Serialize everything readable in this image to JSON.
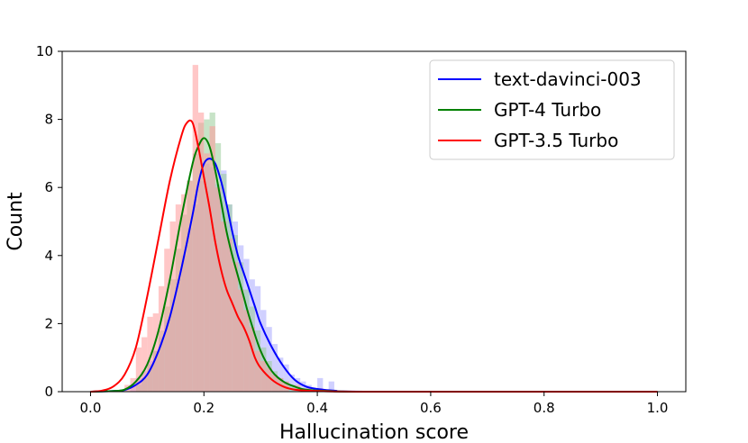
{
  "chart_data": {
    "type": "histogram",
    "title": "",
    "xlabel": "Hallucination score",
    "ylabel": "Count",
    "xlim": [
      -0.05,
      1.05
    ],
    "ylim": [
      0,
      10
    ],
    "xticks": [
      "0.0",
      "0.2",
      "0.4",
      "0.6",
      "0.8",
      "1.0"
    ],
    "yticks": [
      "0",
      "2",
      "4",
      "6",
      "8",
      "10"
    ],
    "grid": false,
    "legend_position": "top-right",
    "bin_width": 0.01,
    "series": [
      {
        "name": "text-davinci-003",
        "color": "#0000ff",
        "hist_color": "#aaaaff",
        "hist": [
          [
            0.07,
            0.2
          ],
          [
            0.08,
            0.4
          ],
          [
            0.09,
            0.6
          ],
          [
            0.1,
            0.9
          ],
          [
            0.11,
            1.2
          ],
          [
            0.12,
            1.6
          ],
          [
            0.13,
            2.1
          ],
          [
            0.14,
            2.7
          ],
          [
            0.15,
            3.3
          ],
          [
            0.16,
            4.0
          ],
          [
            0.17,
            4.8
          ],
          [
            0.18,
            5.5
          ],
          [
            0.19,
            6.2
          ],
          [
            0.2,
            6.7
          ],
          [
            0.21,
            6.6
          ],
          [
            0.22,
            6.1
          ],
          [
            0.23,
            6.5
          ],
          [
            0.24,
            5.5
          ],
          [
            0.25,
            5.0
          ],
          [
            0.26,
            4.3
          ],
          [
            0.27,
            3.9
          ],
          [
            0.28,
            3.3
          ],
          [
            0.29,
            3.1
          ],
          [
            0.3,
            2.4
          ],
          [
            0.31,
            1.9
          ],
          [
            0.32,
            1.4
          ],
          [
            0.33,
            1.0
          ],
          [
            0.34,
            0.8
          ],
          [
            0.35,
            0.5
          ],
          [
            0.36,
            0.4
          ],
          [
            0.37,
            0.3
          ],
          [
            0.38,
            0.2
          ],
          [
            0.4,
            0.4
          ],
          [
            0.42,
            0.3
          ]
        ],
        "kde": [
          [
            0.0,
            0.0
          ],
          [
            0.04,
            0.02
          ],
          [
            0.06,
            0.05
          ],
          [
            0.08,
            0.2
          ],
          [
            0.1,
            0.5
          ],
          [
            0.12,
            1.2
          ],
          [
            0.14,
            2.2
          ],
          [
            0.16,
            3.6
          ],
          [
            0.18,
            5.2
          ],
          [
            0.19,
            6.1
          ],
          [
            0.2,
            6.7
          ],
          [
            0.21,
            6.85
          ],
          [
            0.22,
            6.7
          ],
          [
            0.23,
            6.2
          ],
          [
            0.24,
            5.5
          ],
          [
            0.25,
            4.7
          ],
          [
            0.26,
            4.0
          ],
          [
            0.27,
            3.5
          ],
          [
            0.28,
            3.0
          ],
          [
            0.29,
            2.5
          ],
          [
            0.3,
            2.0
          ],
          [
            0.32,
            1.3
          ],
          [
            0.34,
            0.75
          ],
          [
            0.36,
            0.35
          ],
          [
            0.38,
            0.15
          ],
          [
            0.4,
            0.08
          ],
          [
            0.43,
            0.03
          ],
          [
            0.5,
            0.0
          ],
          [
            1.0,
            0.0
          ]
        ]
      },
      {
        "name": "GPT-4 Turbo",
        "color": "#008000",
        "hist_color": "#99cc99",
        "hist": [
          [
            0.08,
            0.2
          ],
          [
            0.09,
            0.4
          ],
          [
            0.1,
            0.8
          ],
          [
            0.11,
            1.2
          ],
          [
            0.12,
            1.8
          ],
          [
            0.13,
            2.5
          ],
          [
            0.14,
            3.3
          ],
          [
            0.15,
            4.2
          ],
          [
            0.16,
            5.2
          ],
          [
            0.17,
            6.2
          ],
          [
            0.18,
            7.0
          ],
          [
            0.19,
            7.9
          ],
          [
            0.2,
            8.0
          ],
          [
            0.21,
            8.2
          ],
          [
            0.22,
            7.3
          ],
          [
            0.23,
            6.4
          ],
          [
            0.24,
            5.5
          ],
          [
            0.25,
            4.6
          ],
          [
            0.26,
            3.8
          ],
          [
            0.27,
            3.0
          ],
          [
            0.28,
            2.5
          ],
          [
            0.29,
            1.8
          ],
          [
            0.3,
            1.3
          ],
          [
            0.31,
            0.9
          ],
          [
            0.32,
            0.6
          ],
          [
            0.33,
            0.4
          ],
          [
            0.34,
            0.3
          ],
          [
            0.35,
            0.2
          ],
          [
            0.36,
            0.1
          ]
        ],
        "kde": [
          [
            0.0,
            0.0
          ],
          [
            0.04,
            0.02
          ],
          [
            0.06,
            0.06
          ],
          [
            0.08,
            0.3
          ],
          [
            0.1,
            0.8
          ],
          [
            0.12,
            1.8
          ],
          [
            0.14,
            3.3
          ],
          [
            0.16,
            5.1
          ],
          [
            0.18,
            6.7
          ],
          [
            0.19,
            7.2
          ],
          [
            0.2,
            7.45
          ],
          [
            0.21,
            7.2
          ],
          [
            0.22,
            6.5
          ],
          [
            0.23,
            5.6
          ],
          [
            0.24,
            4.7
          ],
          [
            0.25,
            4.0
          ],
          [
            0.26,
            3.4
          ],
          [
            0.27,
            2.8
          ],
          [
            0.28,
            2.2
          ],
          [
            0.3,
            1.2
          ],
          [
            0.32,
            0.6
          ],
          [
            0.34,
            0.3
          ],
          [
            0.36,
            0.15
          ],
          [
            0.38,
            0.06
          ],
          [
            0.42,
            0.02
          ],
          [
            0.5,
            0.0
          ],
          [
            1.0,
            0.0
          ]
        ]
      },
      {
        "name": "GPT-3.5 Turbo",
        "color": "#ff0000",
        "hist_color": "#ff9999",
        "hist": [
          [
            0.06,
            0.2
          ],
          [
            0.07,
            0.4
          ],
          [
            0.08,
            1.3
          ],
          [
            0.09,
            1.6
          ],
          [
            0.1,
            2.2
          ],
          [
            0.11,
            2.3
          ],
          [
            0.12,
            3.1
          ],
          [
            0.13,
            4.2
          ],
          [
            0.14,
            5.0
          ],
          [
            0.15,
            5.5
          ],
          [
            0.16,
            5.8
          ],
          [
            0.17,
            6.2
          ],
          [
            0.18,
            9.6
          ],
          [
            0.19,
            8.2
          ],
          [
            0.2,
            7.0
          ],
          [
            0.21,
            7.8
          ],
          [
            0.22,
            6.0
          ],
          [
            0.23,
            5.0
          ],
          [
            0.24,
            4.5
          ],
          [
            0.25,
            3.8
          ],
          [
            0.26,
            3.0
          ],
          [
            0.27,
            2.4
          ],
          [
            0.28,
            1.9
          ],
          [
            0.29,
            1.2
          ],
          [
            0.3,
            0.9
          ],
          [
            0.31,
            0.7
          ],
          [
            0.32,
            0.5
          ],
          [
            0.33,
            0.4
          ],
          [
            0.34,
            0.3
          ],
          [
            0.36,
            0.2
          ],
          [
            0.38,
            0.1
          ],
          [
            0.4,
            0.1
          ]
        ],
        "kde": [
          [
            0.0,
            0.0
          ],
          [
            0.02,
            0.03
          ],
          [
            0.04,
            0.15
          ],
          [
            0.06,
            0.5
          ],
          [
            0.08,
            1.3
          ],
          [
            0.1,
            2.8
          ],
          [
            0.12,
            4.5
          ],
          [
            0.14,
            6.2
          ],
          [
            0.16,
            7.5
          ],
          [
            0.17,
            7.9
          ],
          [
            0.18,
            7.9
          ],
          [
            0.19,
            7.2
          ],
          [
            0.2,
            6.3
          ],
          [
            0.21,
            5.4
          ],
          [
            0.22,
            4.4
          ],
          [
            0.23,
            3.6
          ],
          [
            0.24,
            3.0
          ],
          [
            0.25,
            2.6
          ],
          [
            0.26,
            2.2
          ],
          [
            0.27,
            1.9
          ],
          [
            0.28,
            1.5
          ],
          [
            0.29,
            1.0
          ],
          [
            0.3,
            0.7
          ],
          [
            0.32,
            0.35
          ],
          [
            0.34,
            0.15
          ],
          [
            0.36,
            0.06
          ],
          [
            0.4,
            0.02
          ],
          [
            0.5,
            0.0
          ],
          [
            1.0,
            0.0
          ]
        ]
      }
    ]
  }
}
